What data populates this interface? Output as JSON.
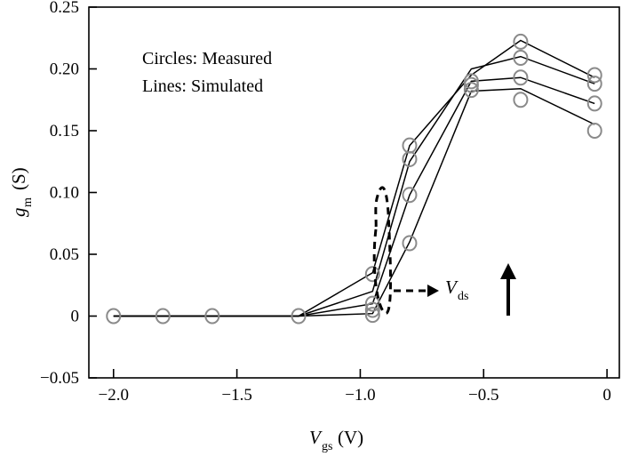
{
  "chart_data": {
    "type": "line",
    "xlabel": "V",
    "xlabel_sub": "gs",
    "xlabel_unit": "(V)",
    "ylabel": "g",
    "ylabel_sub": "m",
    "ylabel_unit": "(S)",
    "xlim": [
      -2.1,
      0.05
    ],
    "ylim": [
      -0.05,
      0.25
    ],
    "x_ticks": [
      -2.0,
      -1.5,
      -1.0,
      -0.5,
      0
    ],
    "x_tick_labels": [
      "−2.0",
      "−1.5",
      "−1.0",
      "−0.5",
      "0"
    ],
    "y_ticks": [
      -0.05,
      0,
      0.05,
      0.1,
      0.15,
      0.2,
      0.25
    ],
    "y_tick_labels": [
      "−0.05",
      "0",
      "0.05",
      "0.10",
      "0.15",
      "0.20",
      "0.25"
    ],
    "legend": [
      "Circles: Measured",
      "Lines: Simulated"
    ],
    "legend_placement": "top-left",
    "grid": false,
    "annotation": {
      "label": "V",
      "label_sub": "ds",
      "note": "arrow up"
    },
    "x": [
      -2.0,
      -1.8,
      -1.6,
      -1.25,
      -0.95,
      -0.8,
      -0.55,
      -0.35,
      -0.05
    ],
    "lines": [
      {
        "values": [
          0,
          0,
          0,
          0,
          0.035,
          0.138,
          0.195,
          0.223,
          0.193
        ]
      },
      {
        "values": [
          0,
          0,
          0,
          0,
          0.02,
          0.125,
          0.2,
          0.21,
          0.188
        ]
      },
      {
        "values": [
          0,
          0,
          0,
          0,
          0.01,
          0.098,
          0.19,
          0.193,
          0.172
        ]
      },
      {
        "values": [
          0,
          0,
          0,
          0,
          0.002,
          0.06,
          0.182,
          0.184,
          0.155
        ]
      }
    ],
    "measured": [
      [
        -2.0,
        0
      ],
      [
        -1.8,
        0
      ],
      [
        -1.6,
        0
      ],
      [
        -1.25,
        0
      ],
      [
        -0.95,
        0.034
      ],
      [
        -0.95,
        0.01
      ],
      [
        -0.95,
        0.005
      ],
      [
        -0.95,
        0.001
      ],
      [
        -0.8,
        0.138
      ],
      [
        -0.8,
        0.127
      ],
      [
        -0.8,
        0.098
      ],
      [
        -0.8,
        0.059
      ],
      [
        -0.55,
        0.19
      ],
      [
        -0.55,
        0.187
      ],
      [
        -0.55,
        0.183
      ],
      [
        -0.35,
        0.222
      ],
      [
        -0.35,
        0.209
      ],
      [
        -0.35,
        0.193
      ],
      [
        -0.35,
        0.175
      ],
      [
        -0.05,
        0.195
      ],
      [
        -0.05,
        0.188
      ],
      [
        -0.05,
        0.172
      ],
      [
        -0.05,
        0.15
      ]
    ]
  }
}
